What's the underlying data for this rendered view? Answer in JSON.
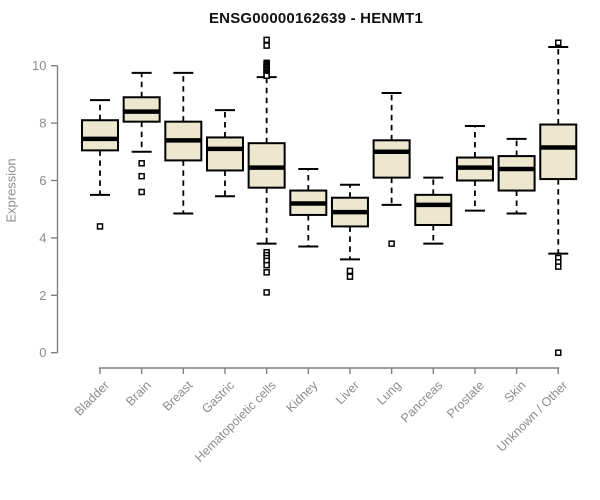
{
  "chart_data": {
    "type": "boxplot",
    "title": "ENSG00000162639 - HENMT1",
    "ylabel": "Expression",
    "xlabel": "",
    "y_ticks": [
      0,
      2,
      4,
      6,
      8,
      10
    ],
    "ylim": [
      0,
      11
    ],
    "grid": "off",
    "categories": [
      "Bladder",
      "Brain",
      "Breast",
      "Gastric",
      "Hematopoietic cells",
      "Kidney",
      "Liver",
      "Lung",
      "Pancreas",
      "Prostate",
      "Skin",
      "Unknown / Other"
    ],
    "series": [
      {
        "category": "Bladder",
        "whisker_low": 5.5,
        "q1": 7.05,
        "median": 7.45,
        "q3": 8.1,
        "whisker_high": 8.8,
        "outliers": [
          4.4
        ]
      },
      {
        "category": "Brain",
        "whisker_low": 7.0,
        "q1": 8.05,
        "median": 8.4,
        "q3": 8.9,
        "whisker_high": 9.75,
        "outliers": [
          6.6,
          6.15,
          5.6
        ]
      },
      {
        "category": "Breast",
        "whisker_low": 4.85,
        "q1": 6.7,
        "median": 7.4,
        "q3": 8.05,
        "whisker_high": 9.75,
        "outliers": []
      },
      {
        "category": "Gastric",
        "whisker_low": 5.45,
        "q1": 6.35,
        "median": 7.1,
        "q3": 7.5,
        "whisker_high": 8.45,
        "outliers": []
      },
      {
        "category": "Hematopoietic cells",
        "whisker_low": 3.8,
        "q1": 5.75,
        "median": 6.45,
        "q3": 7.3,
        "whisker_high": 9.6,
        "outliers": [
          10.9,
          10.7,
          10.1,
          10.05,
          10.0,
          9.95,
          9.9,
          9.85,
          9.8,
          9.75,
          9.7,
          9.65,
          3.5,
          3.4,
          3.3,
          3.2,
          3.05,
          2.8,
          2.1
        ]
      },
      {
        "category": "Kidney",
        "whisker_low": 3.7,
        "q1": 4.8,
        "median": 5.2,
        "q3": 5.65,
        "whisker_high": 6.4,
        "outliers": []
      },
      {
        "category": "Liver",
        "whisker_low": 3.25,
        "q1": 4.4,
        "median": 4.9,
        "q3": 5.4,
        "whisker_high": 5.85,
        "outliers": [
          2.85,
          2.65
        ]
      },
      {
        "category": "Lung",
        "whisker_low": 5.15,
        "q1": 6.1,
        "median": 7.0,
        "q3": 7.4,
        "whisker_high": 9.05,
        "outliers": [
          3.8
        ]
      },
      {
        "category": "Pancreas",
        "whisker_low": 3.8,
        "q1": 4.45,
        "median": 5.15,
        "q3": 5.5,
        "whisker_high": 6.1,
        "outliers": []
      },
      {
        "category": "Prostate",
        "whisker_low": 4.95,
        "q1": 6.0,
        "median": 6.45,
        "q3": 6.8,
        "whisker_high": 7.9,
        "outliers": []
      },
      {
        "category": "Skin",
        "whisker_low": 4.85,
        "q1": 5.65,
        "median": 6.4,
        "q3": 6.85,
        "whisker_high": 7.45,
        "outliers": []
      },
      {
        "category": "Unknown / Other",
        "whisker_low": 3.45,
        "q1": 6.05,
        "median": 7.15,
        "q3": 7.95,
        "whisker_high": 10.65,
        "outliers": [
          10.8,
          3.3,
          3.15,
          3.0,
          0.0
        ]
      }
    ],
    "colors": {
      "box_fill": "#ECE7CE",
      "box_stroke": "#000000",
      "whisker": "#000000",
      "axis_line": "#808080",
      "tick_text": "#8c8c8c",
      "title_text": "#111111",
      "background": "#ffffff"
    }
  }
}
